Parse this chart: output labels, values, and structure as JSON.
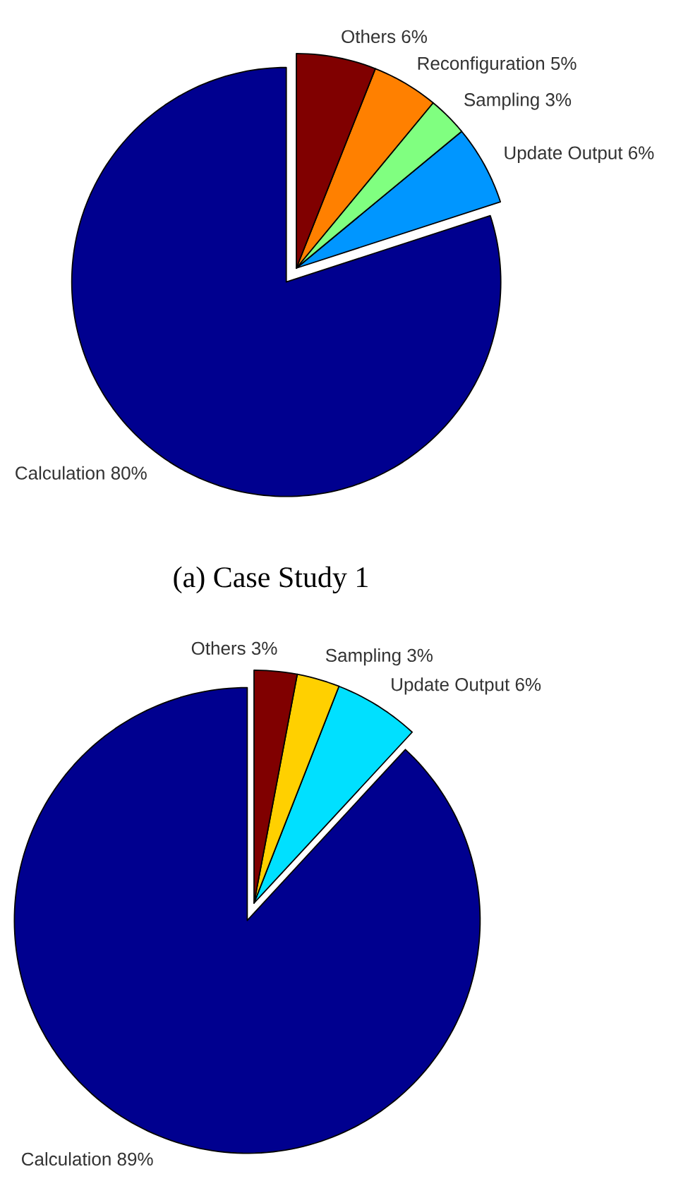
{
  "chart_data": [
    {
      "type": "pie",
      "categories": [
        "Calculation",
        "Update Output",
        "Sampling",
        "Reconfiguration",
        "Others"
      ],
      "values": [
        80,
        6,
        3,
        5,
        6
      ],
      "value_labels": [
        "80%",
        "6%",
        "3%",
        "5%",
        "6%"
      ],
      "colors": [
        "#00008f",
        "#0096ff",
        "#80ff80",
        "#ff8000",
        "#800000"
      ],
      "annotations": [
        "(a) Case Study 1"
      ]
    },
    {
      "type": "pie",
      "categories": [
        "Calculation",
        "Update Output",
        "Sampling",
        "Others"
      ],
      "values": [
        89,
        6,
        3,
        3
      ],
      "value_labels": [
        "89%",
        "6%",
        "3%",
        "3%"
      ],
      "colors": [
        "#00008f",
        "#00e0ff",
        "#ffd000",
        "#800000"
      ]
    }
  ]
}
